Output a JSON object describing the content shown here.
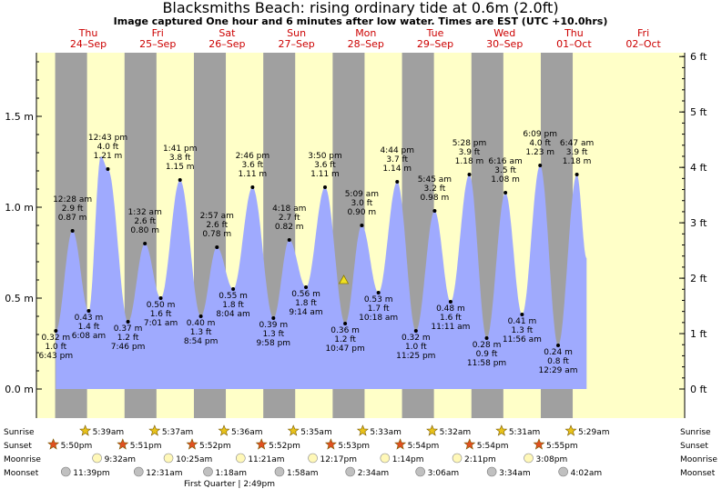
{
  "title": "Blacksmiths Beach: rising  ordinary tide at 0.6m (2.0ft)",
  "subtitle": "Image captured One hour and 6 minutes after low water. Times are EST (UTC +10.0hrs)",
  "days": [
    {
      "weekday": "Thu",
      "date": "24–Sep"
    },
    {
      "weekday": "Fri",
      "date": "25–Sep"
    },
    {
      "weekday": "Sat",
      "date": "26–Sep"
    },
    {
      "weekday": "Sun",
      "date": "27–Sep"
    },
    {
      "weekday": "Mon",
      "date": "28–Sep"
    },
    {
      "weekday": "Tue",
      "date": "29–Sep"
    },
    {
      "weekday": "Wed",
      "date": "30–Sep"
    },
    {
      "weekday": "Thu",
      "date": "01–Oct"
    },
    {
      "weekday": "Fri",
      "date": "02–Oct"
    }
  ],
  "chart_data": {
    "type": "area",
    "title": "Blacksmiths Beach: rising  ordinary tide at 0.6m (2.0ft)",
    "ylabel_left_unit": "m",
    "ylabel_right_unit": "ft",
    "ylim_m": [
      -0.05,
      1.85
    ],
    "yticks_left": [
      {
        "v": 0.0,
        "t": "0.0 m"
      },
      {
        "v": 0.5,
        "t": "0.5 m"
      },
      {
        "v": 1.0,
        "t": "1.0 m"
      },
      {
        "v": 1.5,
        "t": "1.5 m"
      }
    ],
    "yticks_right": [
      {
        "v": 0,
        "t": "0 ft"
      },
      {
        "v": 1,
        "t": "1 ft"
      },
      {
        "v": 2,
        "t": "2 ft"
      },
      {
        "v": 3,
        "t": "3 ft"
      },
      {
        "v": 4,
        "t": "4 ft"
      },
      {
        "v": 5,
        "t": "5 ft"
      },
      {
        "v": 6,
        "t": "6 ft"
      }
    ],
    "current": {
      "day": 4.43,
      "m": 0.6,
      "marker": "yellow-triangle"
    },
    "tides": [
      {
        "day": 0.93,
        "time": "",
        "ft": "",
        "m": 1.28,
        "label": false
      },
      {
        "day": 0.28,
        "time": "6:43 pm",
        "ft": "1.0 ft",
        "m": 0.32,
        "label": true
      },
      {
        "day": 0.52,
        "time": "12:28 am",
        "ft": "2.9 ft",
        "m": 0.87,
        "label": true
      },
      {
        "day": 0.754,
        "time": "6:08 am",
        "ft": "1.4 ft",
        "m": 0.43,
        "label": true
      },
      {
        "day": 1.03,
        "time": "12:43 pm",
        "ft": "4.0 ft",
        "m": 1.21,
        "label": true
      },
      {
        "day": 1.32,
        "time": "7:46 pm",
        "ft": "1.2 ft",
        "m": 0.37,
        "label": true
      },
      {
        "day": 1.564,
        "time": "1:32 am",
        "ft": "2.6 ft",
        "m": 0.8,
        "label": true
      },
      {
        "day": 1.792,
        "time": "7:01 am",
        "ft": "1.6 ft",
        "m": 0.5,
        "label": true
      },
      {
        "day": 2.07,
        "time": "1:41 pm",
        "ft": "3.8 ft",
        "m": 1.15,
        "label": true
      },
      {
        "day": 2.37,
        "time": "8:54 pm",
        "ft": "1.3 ft",
        "m": 0.4,
        "label": true
      },
      {
        "day": 2.602,
        "time": "2:57 am",
        "ft": "2.6 ft",
        "m": 0.78,
        "label": true
      },
      {
        "day": 2.836,
        "time": "8:04 am",
        "ft": "1.8 ft",
        "m": 0.55,
        "label": true
      },
      {
        "day": 3.115,
        "time": "2:46 pm",
        "ft": "3.6 ft",
        "m": 1.11,
        "label": true
      },
      {
        "day": 3.416,
        "time": "9:58 pm",
        "ft": "1.3 ft",
        "m": 0.39,
        "label": true
      },
      {
        "day": 3.645,
        "time": "4:18 am",
        "ft": "2.7 ft",
        "m": 0.82,
        "label": true
      },
      {
        "day": 3.885,
        "time": "9:14 am",
        "ft": "1.8 ft",
        "m": 0.56,
        "label": true
      },
      {
        "day": 4.16,
        "time": "3:50 pm",
        "ft": "3.6 ft",
        "m": 1.11,
        "label": true
      },
      {
        "day": 4.45,
        "time": "10:47 pm",
        "ft": "1.2 ft",
        "m": 0.36,
        "label": true
      },
      {
        "day": 4.69,
        "time": "5:09 am",
        "ft": "3.0 ft",
        "m": 0.9,
        "label": true
      },
      {
        "day": 4.93,
        "time": "10:18 am",
        "ft": "1.7 ft",
        "m": 0.53,
        "label": true
      },
      {
        "day": 5.2,
        "time": "4:44 pm",
        "ft": "3.7 ft",
        "m": 1.14,
        "label": true
      },
      {
        "day": 5.47,
        "time": "11:25 pm",
        "ft": "1.0 ft",
        "m": 0.32,
        "label": true
      },
      {
        "day": 5.74,
        "time": "5:45 am",
        "ft": "3.2 ft",
        "m": 0.98,
        "label": true
      },
      {
        "day": 5.97,
        "time": "11:11 am",
        "ft": "1.6 ft",
        "m": 0.48,
        "label": true
      },
      {
        "day": 6.24,
        "time": "5:28 pm",
        "ft": "3.9 ft",
        "m": 1.18,
        "label": true
      },
      {
        "day": 6.49,
        "time": "11:58 pm",
        "ft": "0.9 ft",
        "m": 0.28,
        "label": true
      },
      {
        "day": 6.76,
        "time": "6:16 am",
        "ft": "3.5 ft",
        "m": 1.08,
        "label": true
      },
      {
        "day": 7.0,
        "time": "11:56 am",
        "ft": "1.3 ft",
        "m": 0.41,
        "label": true
      },
      {
        "day": 7.26,
        "time": "6:09 pm",
        "ft": "4.0 ft",
        "m": 1.23,
        "label": true
      },
      {
        "day": 7.52,
        "time": "12:29 am",
        "ft": "0.8 ft",
        "m": 0.24,
        "label": true
      },
      {
        "day": 7.79,
        "time": "6:47 am",
        "ft": "3.9 ft",
        "m": 1.18,
        "label": true
      },
      {
        "day": 7.93,
        "time": "",
        "ft": "",
        "m": 0.72,
        "label": false
      }
    ]
  },
  "events": {
    "sunrise_label": "Sunrise",
    "sunset_label": "Sunset",
    "moonrise_label": "Moonrise",
    "moonset_label": "Moonset",
    "sunrise": [
      {
        "day": 0.73,
        "text": "5:39am"
      },
      {
        "day": 1.73,
        "text": "5:37am"
      },
      {
        "day": 2.73,
        "text": "5:36am"
      },
      {
        "day": 3.73,
        "text": "5:35am"
      },
      {
        "day": 4.73,
        "text": "5:33am"
      },
      {
        "day": 5.73,
        "text": "5:32am"
      },
      {
        "day": 6.73,
        "text": "5:31am"
      },
      {
        "day": 7.73,
        "text": "5:29am"
      }
    ],
    "sunset": [
      {
        "day": 0.27,
        "text": "5:50pm"
      },
      {
        "day": 1.27,
        "text": "5:51pm"
      },
      {
        "day": 2.27,
        "text": "5:52pm"
      },
      {
        "day": 3.27,
        "text": "5:52pm"
      },
      {
        "day": 4.27,
        "text": "5:53pm"
      },
      {
        "day": 5.27,
        "text": "5:54pm"
      },
      {
        "day": 6.27,
        "text": "5:54pm"
      },
      {
        "day": 7.27,
        "text": "5:55pm"
      }
    ],
    "moonrise": [
      {
        "day": 0.9,
        "text": "9:32am"
      },
      {
        "day": 1.93,
        "text": "10:25am"
      },
      {
        "day": 2.97,
        "text": "11:21am"
      },
      {
        "day": 4.01,
        "text": "12:17pm"
      },
      {
        "day": 5.05,
        "text": "1:14pm"
      },
      {
        "day": 6.09,
        "text": "2:11pm"
      },
      {
        "day": 7.12,
        "text": "3:08pm"
      }
    ],
    "moonset": [
      {
        "day": 0.45,
        "text": "11:39pm"
      },
      {
        "day": 1.5,
        "text": "12:31am"
      },
      {
        "day": 2.5,
        "text": "1:18am"
      },
      {
        "day": 3.53,
        "text": "1:58am"
      },
      {
        "day": 4.55,
        "text": "2:34am"
      },
      {
        "day": 5.56,
        "text": "3:06am"
      },
      {
        "day": 6.59,
        "text": "3:34am"
      },
      {
        "day": 7.62,
        "text": "4:02am"
      }
    ],
    "moon_phase_note": "First Quarter | 2:49pm"
  },
  "colors": {
    "day_bg": "#ffffc8",
    "night_bg": "#a0a0a0",
    "tide_fill": "#9faafe",
    "day_label": "#cc0000",
    "sun_star": "#e8c21a",
    "sunset_star": "#e05020",
    "moonrise_fill": "#fff8b8",
    "moonset_fill": "#c0c0c0"
  }
}
